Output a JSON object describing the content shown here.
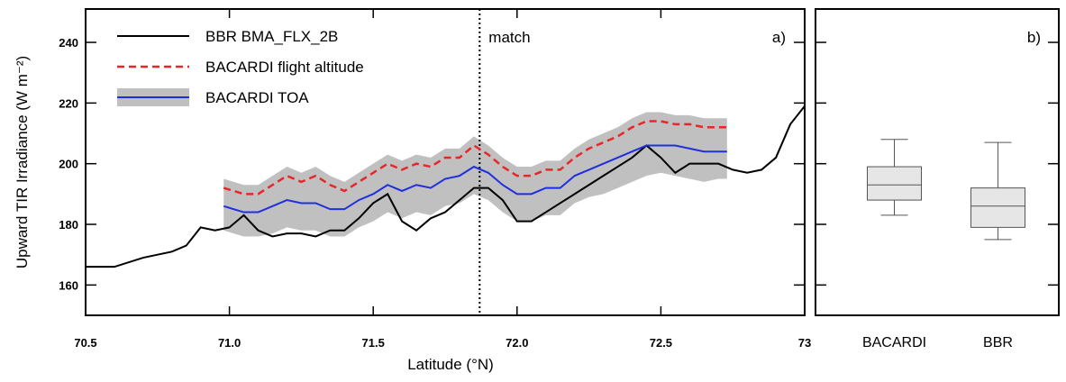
{
  "chart_data": [
    {
      "type": "line",
      "panel_label": "a)",
      "x_label": "Latitude (°N)",
      "y_label": "Upward TIR Irradiance (W m⁻²)",
      "xlim": [
        70.5,
        73
      ],
      "ylim": [
        150,
        251
      ],
      "xticks": [
        70.5,
        {
          "value": 71,
          "label": "71.0"
        },
        71.5,
        {
          "value": 72,
          "label": "72.0"
        },
        72.5,
        73
      ],
      "yticks": [
        160,
        180,
        200,
        220,
        240
      ],
      "vline": {
        "x": 71.87,
        "label": "match"
      },
      "series": [
        {
          "name": "BBR BMA_FLX_2B",
          "color": "#000000",
          "dashed": false,
          "x": [
            70.5,
            70.6,
            70.7,
            70.8,
            70.85,
            70.9,
            70.95,
            71.0,
            71.05,
            71.1,
            71.15,
            71.2,
            71.25,
            71.3,
            71.35,
            71.4,
            71.45,
            71.5,
            71.55,
            71.6,
            71.65,
            71.7,
            71.75,
            71.8,
            71.85,
            71.9,
            71.95,
            72.0,
            72.05,
            72.1,
            72.15,
            72.2,
            72.25,
            72.3,
            72.35,
            72.4,
            72.45,
            72.5,
            72.55,
            72.6,
            72.65,
            72.7,
            72.75,
            72.8,
            72.85,
            72.9,
            72.95,
            73.0
          ],
          "values": [
            166,
            166,
            169,
            171,
            173,
            179,
            178,
            179,
            183,
            178,
            176,
            177,
            177,
            176,
            178,
            178,
            182,
            187,
            190,
            181,
            178,
            182,
            184,
            188,
            192,
            192,
            188,
            181,
            181,
            184,
            187,
            190,
            193,
            196,
            199,
            202,
            206,
            202,
            197,
            200,
            200,
            200,
            198,
            197,
            198,
            202,
            213,
            219
          ]
        },
        {
          "name": "BACARDI flight altitude",
          "color": "#e8262a",
          "dashed": true,
          "x": [
            70.98,
            71.05,
            71.1,
            71.15,
            71.2,
            71.25,
            71.3,
            71.35,
            71.4,
            71.45,
            71.5,
            71.55,
            71.6,
            71.65,
            71.7,
            71.75,
            71.8,
            71.85,
            71.9,
            71.95,
            72.0,
            72.05,
            72.1,
            72.15,
            72.2,
            72.25,
            72.3,
            72.35,
            72.4,
            72.45,
            72.5,
            72.55,
            72.6,
            72.65,
            72.7,
            72.73
          ],
          "values": [
            192,
            190,
            190,
            193,
            196,
            194,
            196,
            193,
            191,
            194,
            197,
            200,
            198,
            200,
            199,
            202,
            202,
            206,
            203,
            199,
            196,
            196,
            198,
            198,
            202,
            205,
            207,
            209,
            212,
            214,
            214,
            213,
            213,
            212,
            212,
            212
          ]
        },
        {
          "name": "BACARDI TOA",
          "color": "#1f2fe0",
          "dashed": false,
          "band_color": "#c0c0c0",
          "x": [
            70.98,
            71.05,
            71.1,
            71.15,
            71.2,
            71.25,
            71.3,
            71.35,
            71.4,
            71.45,
            71.5,
            71.55,
            71.6,
            71.65,
            71.7,
            71.75,
            71.8,
            71.85,
            71.9,
            71.95,
            72.0,
            72.05,
            72.1,
            72.15,
            72.2,
            72.25,
            72.3,
            72.35,
            72.4,
            72.45,
            72.5,
            72.55,
            72.6,
            72.65,
            72.7,
            72.73
          ],
          "values": [
            186,
            184,
            184,
            186,
            188,
            187,
            187,
            185,
            185,
            188,
            190,
            193,
            191,
            193,
            192,
            195,
            196,
            199,
            197,
            193,
            190,
            190,
            192,
            192,
            196,
            198,
            200,
            202,
            204,
            206,
            206,
            206,
            205,
            204,
            204,
            204
          ],
          "lower": [
            178,
            176,
            176,
            177,
            179,
            178,
            178,
            176,
            176,
            179,
            181,
            184,
            182,
            184,
            183,
            186,
            187,
            190,
            188,
            184,
            181,
            181,
            183,
            183,
            187,
            189,
            190,
            192,
            194,
            196,
            197,
            196,
            195,
            194,
            195,
            195
          ],
          "upper": [
            195,
            193,
            193,
            196,
            199,
            197,
            199,
            196,
            194,
            197,
            200,
            203,
            201,
            203,
            202,
            205,
            205,
            209,
            206,
            202,
            199,
            199,
            201,
            201,
            205,
            208,
            210,
            212,
            215,
            217,
            217,
            216,
            216,
            215,
            215,
            215
          ]
        }
      ]
    },
    {
      "type": "box",
      "panel_label": "b)",
      "ylim": [
        150,
        251
      ],
      "yticks": [
        160,
        180,
        200,
        220,
        240
      ],
      "categories": [
        "BACARDI",
        "BBR"
      ],
      "color": "#e6e6e6",
      "boxes": [
        {
          "whislo": 183,
          "q1": 188,
          "med": 193,
          "q3": 199,
          "whishi": 208
        },
        {
          "whislo": 175,
          "q1": 179,
          "med": 186,
          "q3": 192,
          "whishi": 207
        }
      ]
    }
  ]
}
